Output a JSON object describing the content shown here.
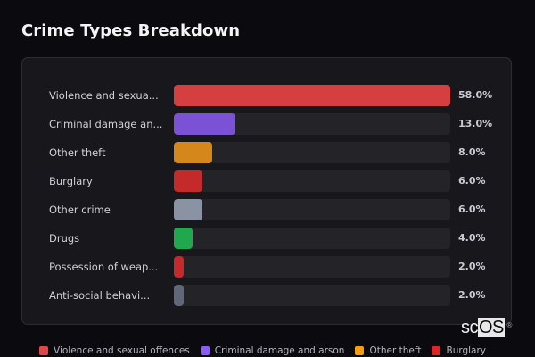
{
  "header": {
    "title": "Crime Types Breakdown"
  },
  "chart_data": {
    "type": "bar",
    "orientation": "horizontal",
    "title": "Crime Types Breakdown",
    "categories": [
      "Violence and sexual offences",
      "Criminal damage and arson",
      "Other theft",
      "Burglary",
      "Other crime",
      "Drugs",
      "Possession of weapons",
      "Anti-social behaviour"
    ],
    "display_labels": [
      "Violence and sexua...",
      "Criminal damage an...",
      "Other theft",
      "Burglary",
      "Other crime",
      "Drugs",
      "Possession of weap...",
      "Anti-social behavi..."
    ],
    "values": [
      58.0,
      13.0,
      8.0,
      6.0,
      6.0,
      4.0,
      2.0,
      2.0
    ],
    "value_labels": [
      "58.0%",
      "13.0%",
      "8.0%",
      "6.0%",
      "6.0%",
      "4.0%",
      "2.0%",
      "2.0%"
    ],
    "colors": [
      "#d63f3f",
      "#7b52d6",
      "#d4871a",
      "#c42a2a",
      "#8a93a4",
      "#21a84f",
      "#c42a2a",
      "#5f6778"
    ],
    "xlim": [
      0,
      58
    ],
    "unit": "%",
    "grid": false,
    "legend_position": "bottom",
    "legend": [
      {
        "label": "Violence and sexual offences",
        "color": "#e0474a"
      },
      {
        "label": "Criminal damage and arson",
        "color": "#8b5cf6"
      },
      {
        "label": "Other theft",
        "color": "#f59e0b"
      },
      {
        "label": "Burglary",
        "color": "#dc2626"
      }
    ]
  },
  "watermark": {
    "text_sc": "sc",
    "text_os": "OS",
    "reg": "®"
  }
}
